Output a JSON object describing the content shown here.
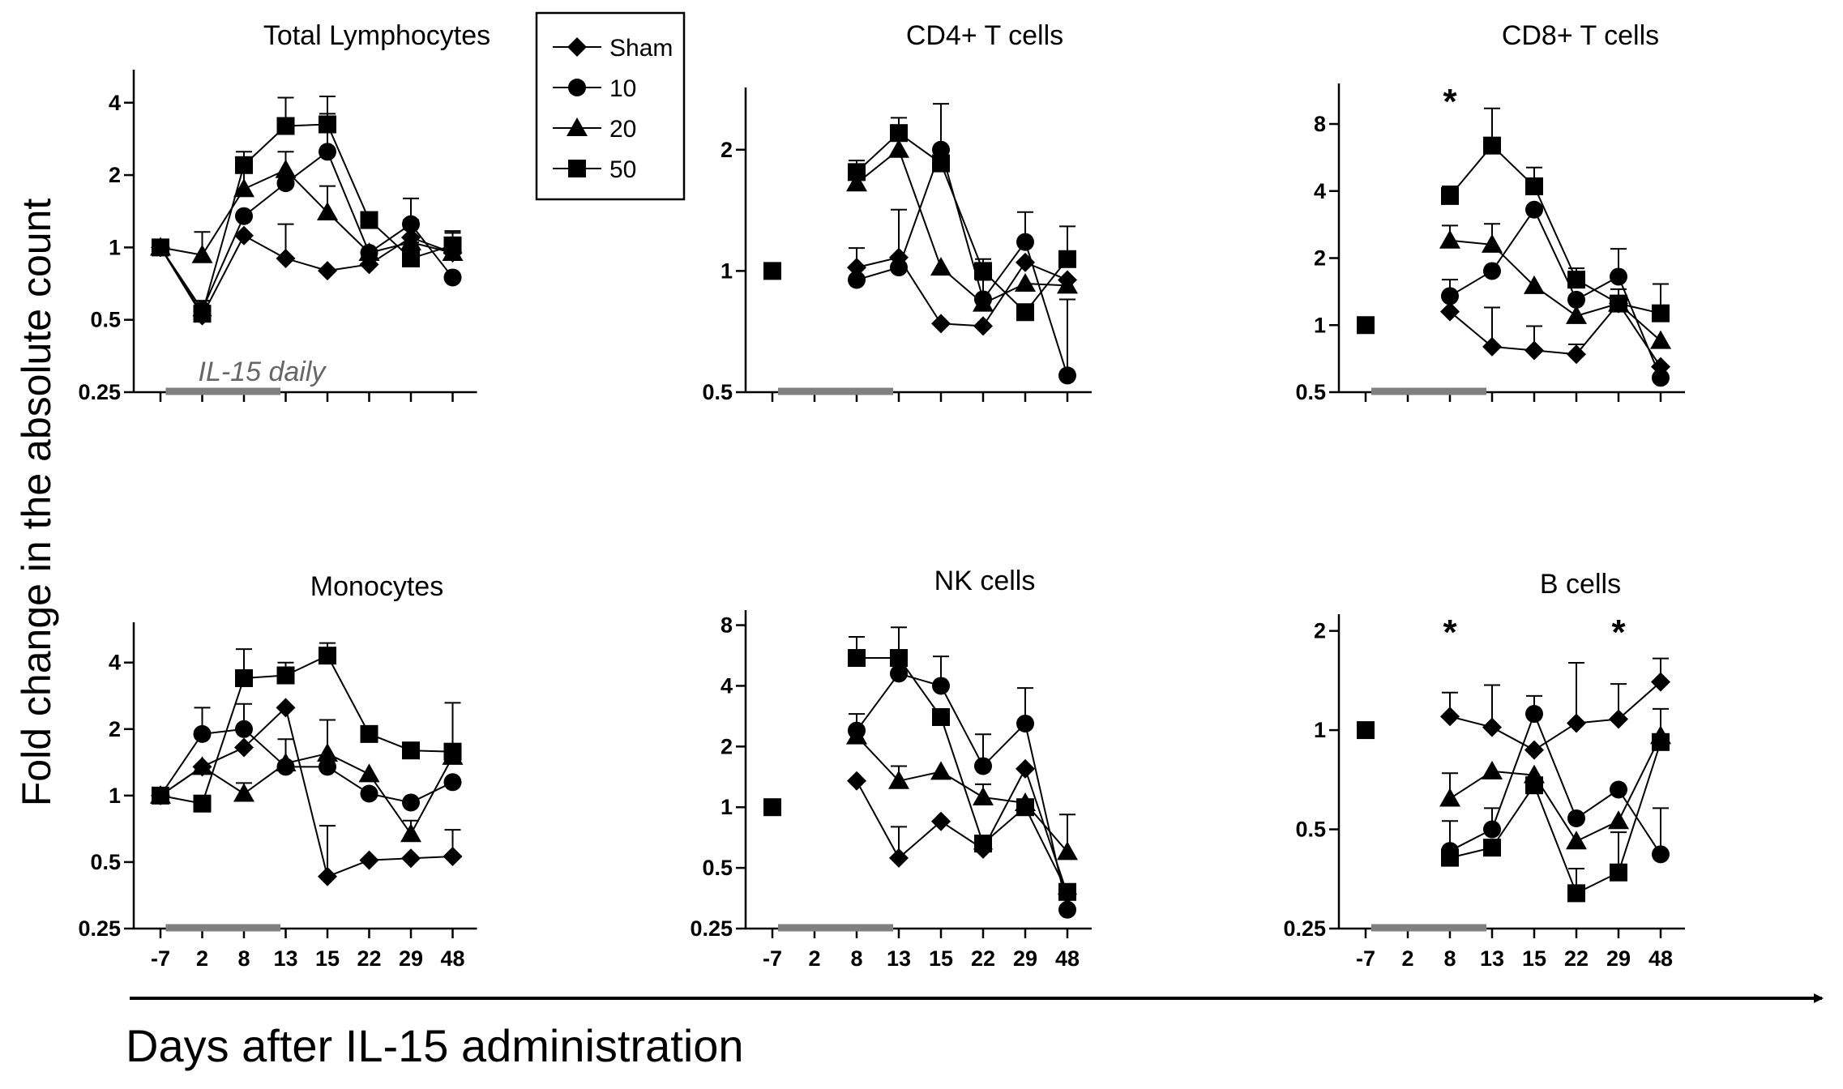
{
  "chart_data": [
    {
      "type": "line",
      "title": "Total Lymphocytes",
      "categories": [
        "-7",
        "2",
        "8",
        "13",
        "15",
        "22",
        "29",
        "48"
      ],
      "ylim": [
        0.25,
        5
      ],
      "yscale": "log2",
      "yticks": [
        "4",
        "2",
        "1",
        "0.5",
        "0.25"
      ],
      "show_xticklabels": false,
      "treatment_bar": {
        "label": "IL-15 daily"
      },
      "series": [
        {
          "name": "Sham",
          "marker": "diamond",
          "values": [
            1.0,
            0.52,
            1.12,
            0.9,
            0.8,
            0.85,
            1.1,
            0.95
          ],
          "err": [
            0,
            0,
            0,
            0.35,
            0,
            0,
            0.2,
            0.2
          ]
        },
        {
          "name": "10",
          "marker": "circle",
          "values": [
            1.0,
            0.55,
            1.35,
            1.85,
            2.5,
            0.95,
            1.25,
            0.75
          ],
          "err": [
            0,
            0.05,
            0,
            0,
            1.1,
            0,
            0.35,
            0
          ]
        },
        {
          "name": "20",
          "marker": "triangle",
          "values": [
            1.0,
            0.93,
            1.75,
            2.1,
            1.4,
            0.95,
            1.05,
            0.95
          ],
          "err": [
            0,
            0.23,
            0.4,
            0.4,
            0.4,
            0,
            0.2,
            0.2
          ]
        },
        {
          "name": "50",
          "marker": "square",
          "values": [
            1.0,
            0.53,
            2.2,
            3.2,
            3.25,
            1.3,
            0.9,
            1.02
          ],
          "err": [
            0,
            0.07,
            0.3,
            1.0,
            1.0,
            0.1,
            0.15,
            0.15
          ]
        }
      ]
    },
    {
      "type": "line",
      "title": "CD4+ T cells",
      "categories": [
        "-7",
        "2",
        "8",
        "13",
        "15",
        "22",
        "29",
        "48"
      ],
      "ylim": [
        0.5,
        2.7
      ],
      "yscale": "log2",
      "yticks": [
        "2",
        "1",
        "0.5"
      ],
      "show_xticklabels": false,
      "treatment_bar": {
        "label": ""
      },
      "series": [
        {
          "name": "Sham",
          "marker": "diamond",
          "values": [
            null,
            null,
            1.02,
            1.08,
            0.74,
            0.73,
            1.05,
            0.95
          ],
          "err": [
            0,
            0,
            0.12,
            0,
            0,
            0,
            0,
            0
          ]
        },
        {
          "name": "10",
          "marker": "circle",
          "values": [
            null,
            null,
            0.95,
            1.02,
            2.0,
            0.85,
            1.18,
            0.55
          ],
          "err": [
            0,
            0,
            0,
            0.4,
            0.6,
            0.1,
            0.22,
            0.3
          ]
        },
        {
          "name": "20",
          "marker": "triangle",
          "values": [
            null,
            null,
            1.65,
            2.0,
            1.02,
            0.83,
            0.93,
            0.92
          ],
          "err": [
            0,
            0,
            0,
            0.3,
            0,
            0,
            0,
            0
          ]
        },
        {
          "name": "50",
          "marker": "square",
          "values": [
            1.0,
            null,
            1.76,
            2.2,
            1.85,
            1.0,
            0.79,
            1.07
          ],
          "err": [
            0,
            0,
            0.12,
            0.2,
            0,
            0.07,
            0,
            0.22
          ]
        }
      ]
    },
    {
      "type": "line",
      "title": "CD8+ T cells",
      "categories": [
        "-7",
        "2",
        "8",
        "13",
        "15",
        "22",
        "29",
        "48"
      ],
      "ylim": [
        0.5,
        11
      ],
      "yscale": "log2",
      "yticks": [
        "8",
        "4",
        "2",
        "1",
        "0.5"
      ],
      "show_xticklabels": false,
      "treatment_bar": {
        "label": ""
      },
      "annotations": [
        {
          "text": "*",
          "x": "8"
        }
      ],
      "series": [
        {
          "name": "Sham",
          "marker": "diamond",
          "values": [
            null,
            null,
            1.15,
            0.8,
            0.77,
            0.74,
            1.25,
            0.65
          ],
          "err": [
            0,
            0,
            0,
            0.4,
            0.22,
            0.08,
            0,
            0
          ]
        },
        {
          "name": "10",
          "marker": "circle",
          "values": [
            null,
            null,
            1.35,
            1.75,
            3.3,
            1.3,
            1.65,
            0.58
          ],
          "err": [
            0,
            0,
            0.25,
            0,
            0,
            0,
            0.55,
            0
          ]
        },
        {
          "name": "20",
          "marker": "triangle",
          "values": [
            null,
            null,
            2.4,
            2.3,
            1.5,
            1.1,
            1.25,
            0.85
          ],
          "err": [
            0,
            0,
            0.4,
            0.55,
            0,
            0,
            0.2,
            0
          ]
        },
        {
          "name": "50",
          "marker": "square",
          "values": [
            1.0,
            null,
            3.8,
            6.4,
            4.2,
            1.6,
            1.25,
            1.13
          ],
          "err": [
            0,
            0,
            0.4,
            3.0,
            0.9,
            0.2,
            0,
            0.4
          ]
        }
      ]
    },
    {
      "type": "line",
      "title": "Monocytes",
      "categories": [
        "-7",
        "2",
        "8",
        "13",
        "15",
        "22",
        "29",
        "48"
      ],
      "ylim": [
        0.25,
        5.5
      ],
      "yscale": "log2",
      "yticks": [
        "4",
        "2",
        "1",
        "0.5",
        "0.25"
      ],
      "show_xticklabels": true,
      "treatment_bar": {
        "label": ""
      },
      "series": [
        {
          "name": "Sham",
          "marker": "diamond",
          "values": [
            1.0,
            1.35,
            1.65,
            2.5,
            0.43,
            0.51,
            0.52,
            0.53
          ],
          "err": [
            0,
            0,
            0,
            0,
            0.3,
            0,
            0,
            0.17
          ]
        },
        {
          "name": "10",
          "marker": "circle",
          "values": [
            1.0,
            1.9,
            2.0,
            1.35,
            1.35,
            1.02,
            0.93,
            1.15
          ],
          "err": [
            0,
            0.6,
            0.6,
            0.45,
            0,
            0,
            0,
            0
          ]
        },
        {
          "name": "20",
          "marker": "triangle",
          "values": [
            1.0,
            1.35,
            1.02,
            1.4,
            1.55,
            1.25,
            0.67,
            1.5
          ],
          "err": [
            0,
            0,
            0.12,
            0,
            0.65,
            0,
            0.1,
            0
          ]
        },
        {
          "name": "50",
          "marker": "square",
          "values": [
            1.0,
            0.92,
            3.4,
            3.5,
            4.3,
            1.9,
            1.6,
            1.58
          ],
          "err": [
            0,
            0,
            1.2,
            0.5,
            0.6,
            0,
            0,
            1.05
          ]
        }
      ]
    },
    {
      "type": "line",
      "title": "NK cells",
      "categories": [
        "-7",
        "2",
        "8",
        "13",
        "15",
        "22",
        "29",
        "48"
      ],
      "ylim": [
        0.25,
        8.5
      ],
      "yscale": "log2",
      "yticks": [
        "8",
        "4",
        "2",
        "1",
        "0.5",
        "0.25"
      ],
      "show_xticklabels": true,
      "treatment_bar": {
        "label": ""
      },
      "series": [
        {
          "name": "Sham",
          "marker": "diamond",
          "values": [
            null,
            null,
            1.35,
            0.56,
            0.85,
            0.62,
            1.55,
            0.37
          ],
          "err": [
            0,
            0,
            0,
            0.24,
            0,
            0,
            0,
            0
          ]
        },
        {
          "name": "10",
          "marker": "circle",
          "values": [
            null,
            null,
            2.4,
            4.6,
            4.0,
            1.6,
            2.6,
            0.31
          ],
          "err": [
            0,
            0,
            0.5,
            0,
            1.6,
            0.7,
            1.3,
            0
          ]
        },
        {
          "name": "20",
          "marker": "triangle",
          "values": [
            null,
            null,
            2.25,
            1.35,
            1.5,
            1.12,
            1.05,
            0.6
          ],
          "err": [
            0,
            0,
            0,
            0.25,
            0,
            0.18,
            0,
            0.32
          ]
        },
        {
          "name": "50",
          "marker": "square",
          "values": [
            1.0,
            null,
            5.5,
            5.5,
            2.8,
            0.66,
            1.0,
            0.38
          ],
          "err": [
            0,
            0,
            1.5,
            2.3,
            0,
            0,
            0,
            0
          ]
        }
      ]
    },
    {
      "type": "line",
      "title": "B cells",
      "categories": [
        "-7",
        "2",
        "8",
        "13",
        "15",
        "22",
        "29",
        "48"
      ],
      "ylim": [
        0.25,
        2.1
      ],
      "yscale": "log2",
      "yticks": [
        "2",
        "1",
        "0.5",
        "0.25"
      ],
      "show_xticklabels": true,
      "treatment_bar": {
        "label": ""
      },
      "annotations": [
        {
          "text": "*",
          "x": "8"
        },
        {
          "text": "*",
          "x": "29"
        }
      ],
      "series": [
        {
          "name": "Sham",
          "marker": "diamond",
          "values": [
            null,
            null,
            1.1,
            1.02,
            0.87,
            1.05,
            1.08,
            1.4
          ],
          "err": [
            0,
            0,
            0.2,
            0.35,
            0,
            0.55,
            0.3,
            0.25
          ]
        },
        {
          "name": "10",
          "marker": "circle",
          "values": [
            null,
            null,
            0.43,
            0.5,
            1.12,
            0.54,
            0.66,
            0.42
          ],
          "err": [
            0,
            0,
            0.1,
            0.08,
            0.15,
            0,
            0,
            0.16
          ]
        },
        {
          "name": "20",
          "marker": "triangle",
          "values": [
            null,
            null,
            0.62,
            0.75,
            0.73,
            0.46,
            0.53,
            0.96
          ],
          "err": [
            0,
            0,
            0.12,
            0,
            0,
            0,
            0,
            0.2
          ]
        },
        {
          "name": "50",
          "marker": "square",
          "values": [
            1.0,
            null,
            0.41,
            0.44,
            0.68,
            0.32,
            0.37,
            0.92
          ],
          "err": [
            0,
            0,
            0,
            0,
            0,
            0.06,
            0.12,
            0
          ]
        }
      ]
    }
  ],
  "legend": {
    "entries": [
      "Sham",
      "10",
      "20",
      "50"
    ],
    "placement": "top, between first and second panel"
  },
  "y_axis_label": "Fold change in the absolute count",
  "x_axis_label": "Days after IL-15 administration",
  "colors": {
    "marker": "#000000",
    "line": "#000000",
    "treatment_bar": "#808080"
  }
}
